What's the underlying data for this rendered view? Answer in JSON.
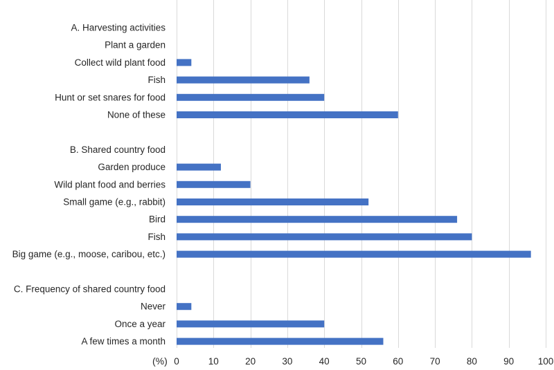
{
  "chart_data": {
    "type": "bar",
    "orientation": "horizontal",
    "unit_label": "(%)",
    "xlim": [
      0,
      100
    ],
    "xticks": [
      0,
      10,
      20,
      30,
      40,
      50,
      60,
      70,
      80,
      90,
      100
    ],
    "grid": true,
    "bar_color": "#4472c4",
    "rows": [
      {
        "label": "A. Harvesting activities",
        "value": null,
        "header": true
      },
      {
        "label": "Plant a garden",
        "value": 0
      },
      {
        "label": "Collect wild plant food",
        "value": 4
      },
      {
        "label": "Fish",
        "value": 36
      },
      {
        "label": "Hunt or set snares for food",
        "value": 40
      },
      {
        "label": "None of these",
        "value": 60
      },
      {
        "label": "",
        "value": null,
        "spacer": true
      },
      {
        "label": "B. Shared country food",
        "value": null,
        "header": true
      },
      {
        "label": "Garden produce",
        "value": 12
      },
      {
        "label": "Wild plant food and berries",
        "value": 20
      },
      {
        "label": "Small game (e.g., rabbit)",
        "value": 52
      },
      {
        "label": "Bird",
        "value": 76
      },
      {
        "label": "Fish",
        "value": 80
      },
      {
        "label": "Big game (e.g., moose, caribou, etc.)",
        "value": 96
      },
      {
        "label": "",
        "value": null,
        "spacer": true
      },
      {
        "label": "C. Frequency of shared country food",
        "value": null,
        "header": true
      },
      {
        "label": "Never",
        "value": 4
      },
      {
        "label": "Once a year",
        "value": 40
      },
      {
        "label": "A few times a month",
        "value": 56
      }
    ]
  }
}
